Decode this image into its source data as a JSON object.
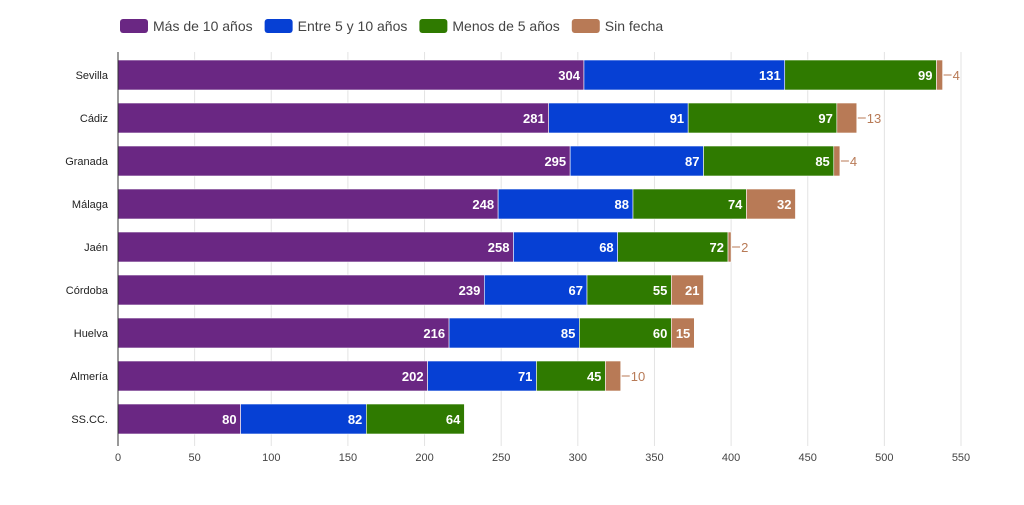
{
  "chart_data": {
    "type": "bar",
    "orientation": "horizontal",
    "stacked": true,
    "categories": [
      "Sevilla",
      "Cádiz",
      "Granada",
      "Málaga",
      "Jaén",
      "Córdoba",
      "Huelva",
      "Almería",
      "SS.CC."
    ],
    "series": [
      {
        "name": "Más de 10 años",
        "color": "#6a2783",
        "values": [
          304,
          281,
          295,
          248,
          258,
          239,
          216,
          202,
          80
        ]
      },
      {
        "name": "Entre 5 y 10 años",
        "color": "#0640d4",
        "values": [
          131,
          91,
          87,
          88,
          68,
          67,
          85,
          71,
          82
        ]
      },
      {
        "name": "Menos de 5 años",
        "color": "#2f7a00",
        "values": [
          99,
          97,
          85,
          74,
          72,
          55,
          60,
          45,
          64
        ]
      },
      {
        "name": "Sin fecha",
        "color": "#b87a56",
        "values": [
          4,
          13,
          4,
          32,
          2,
          21,
          15,
          10,
          0
        ]
      }
    ],
    "xlim": [
      0,
      550
    ],
    "xticks": [
      0,
      50,
      100,
      150,
      200,
      250,
      300,
      350,
      400,
      450,
      500,
      550
    ],
    "grid": true,
    "legend_position": "top-left",
    "title": "",
    "xlabel": "",
    "ylabel": ""
  }
}
